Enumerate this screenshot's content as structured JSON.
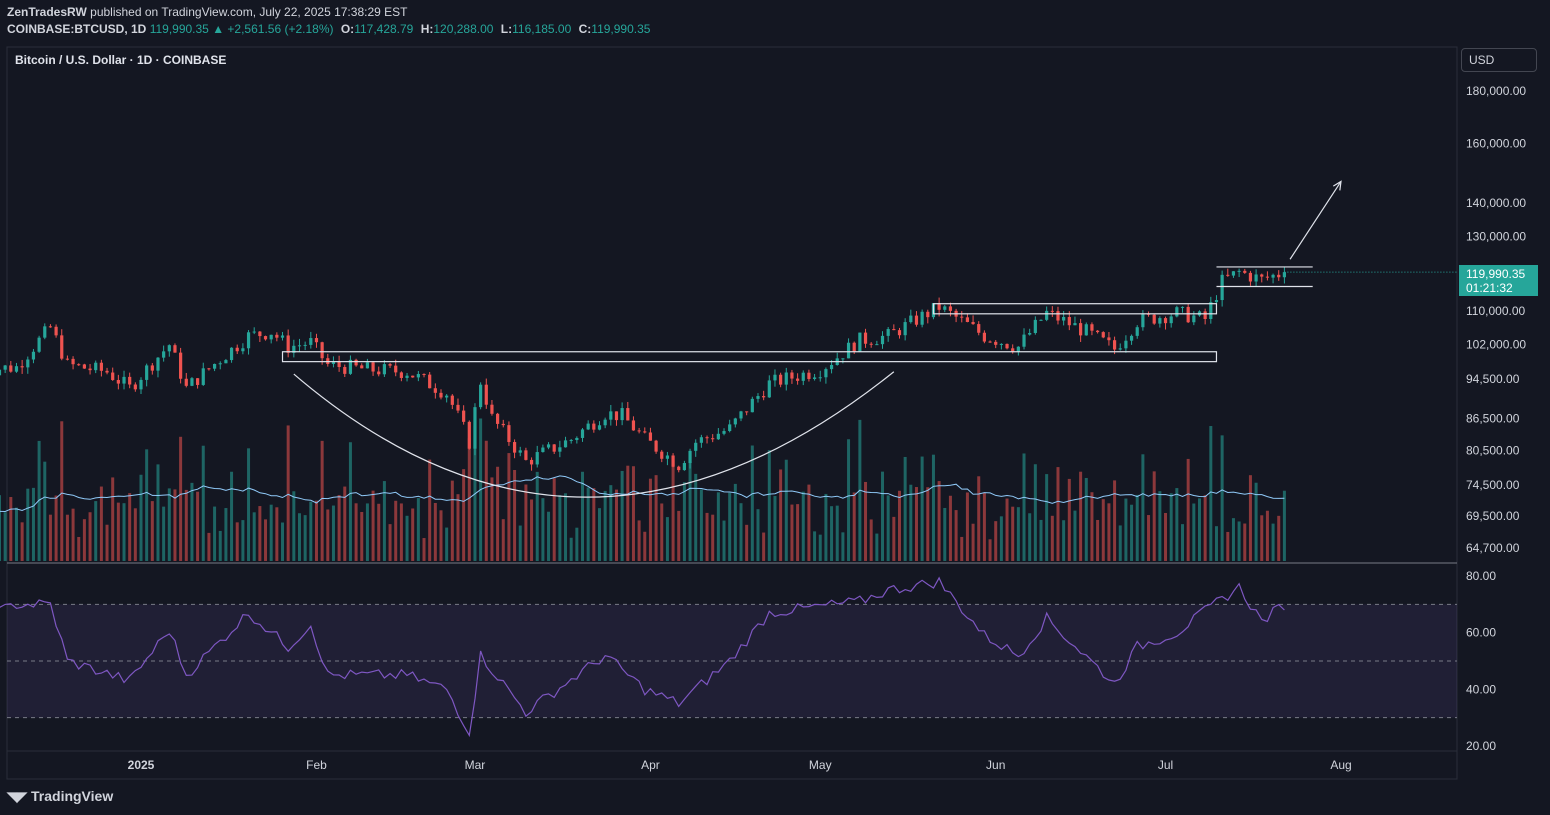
{
  "header": {
    "publisher": "ZenTradesRW",
    "published_text": " published on TradingView.com, July 22, 2025 17:38:29 EST",
    "symbol": "COINBASE:BTCUSD, 1D",
    "last": "119,990.35",
    "change": "▲ +2,561.56 (+2.18%)",
    "open_label": "O:",
    "open": "117,428.79",
    "high_label": "H:",
    "high": "120,288.00",
    "low_label": "L:",
    "low": "116,185.00",
    "close_label": "C:",
    "close": "119,990.35"
  },
  "chart_title": "Bitcoin / U.S. Dollar · 1D · COINBASE",
  "currency_button": "USD",
  "price_tag": {
    "price": "119,990.35",
    "countdown": "01:21:32"
  },
  "brand": "TradingView",
  "colors": {
    "background": "#141722",
    "up": "#26a69a",
    "down": "#ef5350",
    "rsi": "#7e57c2",
    "ma": "#90caf9"
  },
  "chart_data": [
    {
      "type": "candlestick",
      "title": "Bitcoin / U.S. Dollar · 1D · COINBASE",
      "scale": "log",
      "y_ticks": [
        "180,000.00",
        "160,000.00",
        "140,000.00",
        "130,000.00",
        "110,000.00",
        "102,000.00",
        "94,500.00",
        "86,500.00",
        "80,500.00",
        "74,500.00",
        "69,500.00",
        "64,700.00"
      ],
      "y_tick_values": [
        180000,
        160000,
        140000,
        130000,
        110000,
        102000,
        94500,
        86500,
        80500,
        74500,
        69500,
        64700
      ],
      "x_ticks": [
        {
          "label": "2025",
          "date": "2025-01-01"
        },
        {
          "label": "Feb",
          "date": "2025-02-01"
        },
        {
          "label": "Mar",
          "date": "2025-03-01"
        },
        {
          "label": "Apr",
          "date": "2025-04-01"
        },
        {
          "label": "May",
          "date": "2025-05-01"
        },
        {
          "label": "Jun",
          "date": "2025-06-01"
        },
        {
          "label": "Jul",
          "date": "2025-07-01"
        },
        {
          "label": "Aug",
          "date": "2025-08-01"
        }
      ],
      "close_anchors": [
        [
          "2024-12-04",
          96500
        ],
        [
          "2024-12-10",
          97000
        ],
        [
          "2024-12-16",
          106000
        ],
        [
          "2024-12-19",
          97500
        ],
        [
          "2024-12-26",
          96000
        ],
        [
          "2024-12-30",
          92500
        ],
        [
          "2025-01-06",
          102000
        ],
        [
          "2025-01-09",
          92500
        ],
        [
          "2025-01-20",
          104000
        ],
        [
          "2025-01-24",
          105000
        ],
        [
          "2025-01-27",
          101500
        ],
        [
          "2025-01-31",
          102500
        ],
        [
          "2025-02-03",
          97500
        ],
        [
          "2025-02-10",
          96500
        ],
        [
          "2025-02-17",
          96000
        ],
        [
          "2025-02-24",
          91500
        ],
        [
          "2025-02-27",
          84500
        ],
        [
          "2025-02-28",
          82000
        ],
        [
          "2025-03-02",
          94000
        ],
        [
          "2025-03-04",
          86500
        ],
        [
          "2025-03-10",
          78500
        ],
        [
          "2025-03-18",
          82500
        ],
        [
          "2025-03-24",
          87500
        ],
        [
          "2025-03-27",
          87000
        ],
        [
          "2025-03-31",
          82500
        ],
        [
          "2025-04-06",
          78000
        ],
        [
          "2025-04-09",
          82000
        ],
        [
          "2025-04-15",
          84500
        ],
        [
          "2025-04-22",
          93500
        ],
        [
          "2025-05-01",
          96500
        ],
        [
          "2025-05-08",
          103000
        ],
        [
          "2025-05-13",
          104000
        ],
        [
          "2025-05-22",
          111000
        ],
        [
          "2025-05-30",
          104000
        ],
        [
          "2025-06-05",
          101500
        ],
        [
          "2025-06-10",
          109500
        ],
        [
          "2025-06-17",
          105000
        ],
        [
          "2025-06-22",
          101000
        ],
        [
          "2025-06-26",
          107500
        ],
        [
          "2025-07-03",
          109500
        ],
        [
          "2025-07-08",
          108000
        ],
        [
          "2025-07-11",
          117500
        ],
        [
          "2025-07-14",
          120000
        ],
        [
          "2025-07-18",
          118000
        ],
        [
          "2025-07-22",
          119990
        ]
      ],
      "last_price": 119990.35
    },
    {
      "type": "bar",
      "name": "Volume",
      "moving_average": true
    },
    {
      "type": "line",
      "name": "RSI",
      "y_ticks": [
        "80.00",
        "60.00",
        "40.00",
        "20.00"
      ],
      "y_tick_values": [
        80,
        60,
        40,
        20
      ],
      "levels": [
        70,
        50,
        30
      ],
      "anchors": [
        [
          "2024-12-04",
          65
        ],
        [
          "2024-12-10",
          70
        ],
        [
          "2024-12-16",
          70
        ],
        [
          "2024-12-19",
          50
        ],
        [
          "2024-12-30",
          43
        ],
        [
          "2025-01-06",
          61
        ],
        [
          "2025-01-09",
          45
        ],
        [
          "2025-01-20",
          67
        ],
        [
          "2025-01-27",
          55
        ],
        [
          "2025-01-31",
          63
        ],
        [
          "2025-02-03",
          45
        ],
        [
          "2025-02-17",
          45
        ],
        [
          "2025-02-24",
          40
        ],
        [
          "2025-02-28",
          25
        ],
        [
          "2025-03-02",
          52
        ],
        [
          "2025-03-10",
          32
        ],
        [
          "2025-03-24",
          52
        ],
        [
          "2025-03-31",
          40
        ],
        [
          "2025-04-06",
          35
        ],
        [
          "2025-04-15",
          50
        ],
        [
          "2025-04-22",
          67
        ],
        [
          "2025-05-08",
          71
        ],
        [
          "2025-05-13",
          75
        ],
        [
          "2025-05-22",
          78
        ],
        [
          "2025-05-30",
          59
        ],
        [
          "2025-06-05",
          52
        ],
        [
          "2025-06-10",
          65
        ],
        [
          "2025-06-22",
          42
        ],
        [
          "2025-06-26",
          55
        ],
        [
          "2025-07-03",
          60
        ],
        [
          "2025-07-11",
          72
        ],
        [
          "2025-07-14",
          76
        ],
        [
          "2025-07-18",
          64
        ],
        [
          "2025-07-22",
          70
        ]
      ]
    }
  ]
}
